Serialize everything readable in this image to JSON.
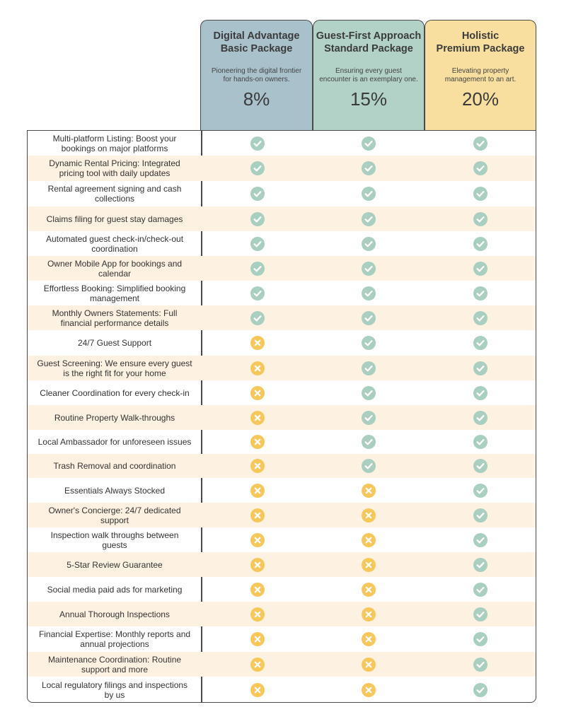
{
  "colors": {
    "basic_header": "#a9c1cb",
    "standard_header": "#b2d1c7",
    "premium_header": "#f8df9f",
    "alt_row": "#fdf1e1",
    "check": "#a8cfc0",
    "cross": "#f8c75a"
  },
  "icons": {
    "included": "check-circle-icon",
    "excluded": "x-circle-icon"
  },
  "packages": [
    {
      "title_lines": [
        "Digital Advantage",
        "Basic Package"
      ],
      "desc_lines": [
        "Pioneering the digital frontier",
        "for hands-on owners."
      ],
      "percent": "8%"
    },
    {
      "title_lines": [
        "Guest-First Approach",
        "Standard Package"
      ],
      "desc_lines": [
        "Ensuring every guest",
        "encounter is an exemplary one."
      ],
      "percent": "15%"
    },
    {
      "title_lines": [
        "Holistic",
        "Premium Package"
      ],
      "desc_lines": [
        "Elevating property",
        "management to an art."
      ],
      "percent": "20%"
    }
  ],
  "features": [
    {
      "lines": [
        "Multi-platform Listing: Boost your",
        "bookings on major platforms"
      ],
      "included": [
        true,
        true,
        true
      ]
    },
    {
      "lines": [
        "Dynamic Rental Pricing: Integrated",
        "pricing tool with daily updates"
      ],
      "included": [
        true,
        true,
        true
      ]
    },
    {
      "lines": [
        "Rental agreement signing and cash",
        "collections"
      ],
      "included": [
        true,
        true,
        true
      ]
    },
    {
      "lines": [
        "Claims filing for guest stay damages"
      ],
      "included": [
        true,
        true,
        true
      ]
    },
    {
      "lines": [
        "Automated guest check-in/check-out",
        "coordination"
      ],
      "included": [
        true,
        true,
        true
      ]
    },
    {
      "lines": [
        "Owner Mobile App for bookings and",
        "calendar"
      ],
      "included": [
        true,
        true,
        true
      ]
    },
    {
      "lines": [
        "Effortless Booking: Simplified booking",
        "management"
      ],
      "included": [
        true,
        true,
        true
      ]
    },
    {
      "lines": [
        "Monthly Owners Statements: Full",
        "financial performance details"
      ],
      "included": [
        true,
        true,
        true
      ]
    },
    {
      "lines": [
        "24/7 Guest Support"
      ],
      "included": [
        false,
        true,
        true
      ]
    },
    {
      "lines": [
        "Guest Screening: We ensure every guest",
        "is the right fit for your home"
      ],
      "included": [
        false,
        true,
        true
      ]
    },
    {
      "lines": [
        "Cleaner Coordination for every check-in"
      ],
      "included": [
        false,
        true,
        true
      ]
    },
    {
      "lines": [
        "Routine Property Walk-throughs"
      ],
      "included": [
        false,
        true,
        true
      ]
    },
    {
      "lines": [
        "Local Ambassador for unforeseen issues"
      ],
      "included": [
        false,
        true,
        true
      ]
    },
    {
      "lines": [
        "Trash Removal and coordination"
      ],
      "included": [
        false,
        true,
        true
      ]
    },
    {
      "lines": [
        "Essentials Always Stocked"
      ],
      "included": [
        false,
        false,
        true
      ]
    },
    {
      "lines": [
        "Owner's Concierge: 24/7 dedicated",
        "support"
      ],
      "included": [
        false,
        false,
        true
      ]
    },
    {
      "lines": [
        "Inspection walk throughs between",
        "guests"
      ],
      "included": [
        false,
        false,
        true
      ]
    },
    {
      "lines": [
        "5-Star Review Guarantee"
      ],
      "included": [
        false,
        false,
        true
      ]
    },
    {
      "lines": [
        "Social media paid ads for marketing"
      ],
      "included": [
        false,
        false,
        true
      ]
    },
    {
      "lines": [
        "Annual Thorough Inspections"
      ],
      "included": [
        false,
        false,
        true
      ]
    },
    {
      "lines": [
        "Financial Expertise: Monthly reports and",
        "annual projections"
      ],
      "included": [
        false,
        false,
        true
      ]
    },
    {
      "lines": [
        "Maintenance Coordination: Routine",
        "support and more"
      ],
      "included": [
        false,
        false,
        true
      ]
    },
    {
      "lines": [
        "Local regulatory filings and inspections",
        "by us"
      ],
      "included": [
        false,
        false,
        true
      ]
    }
  ]
}
